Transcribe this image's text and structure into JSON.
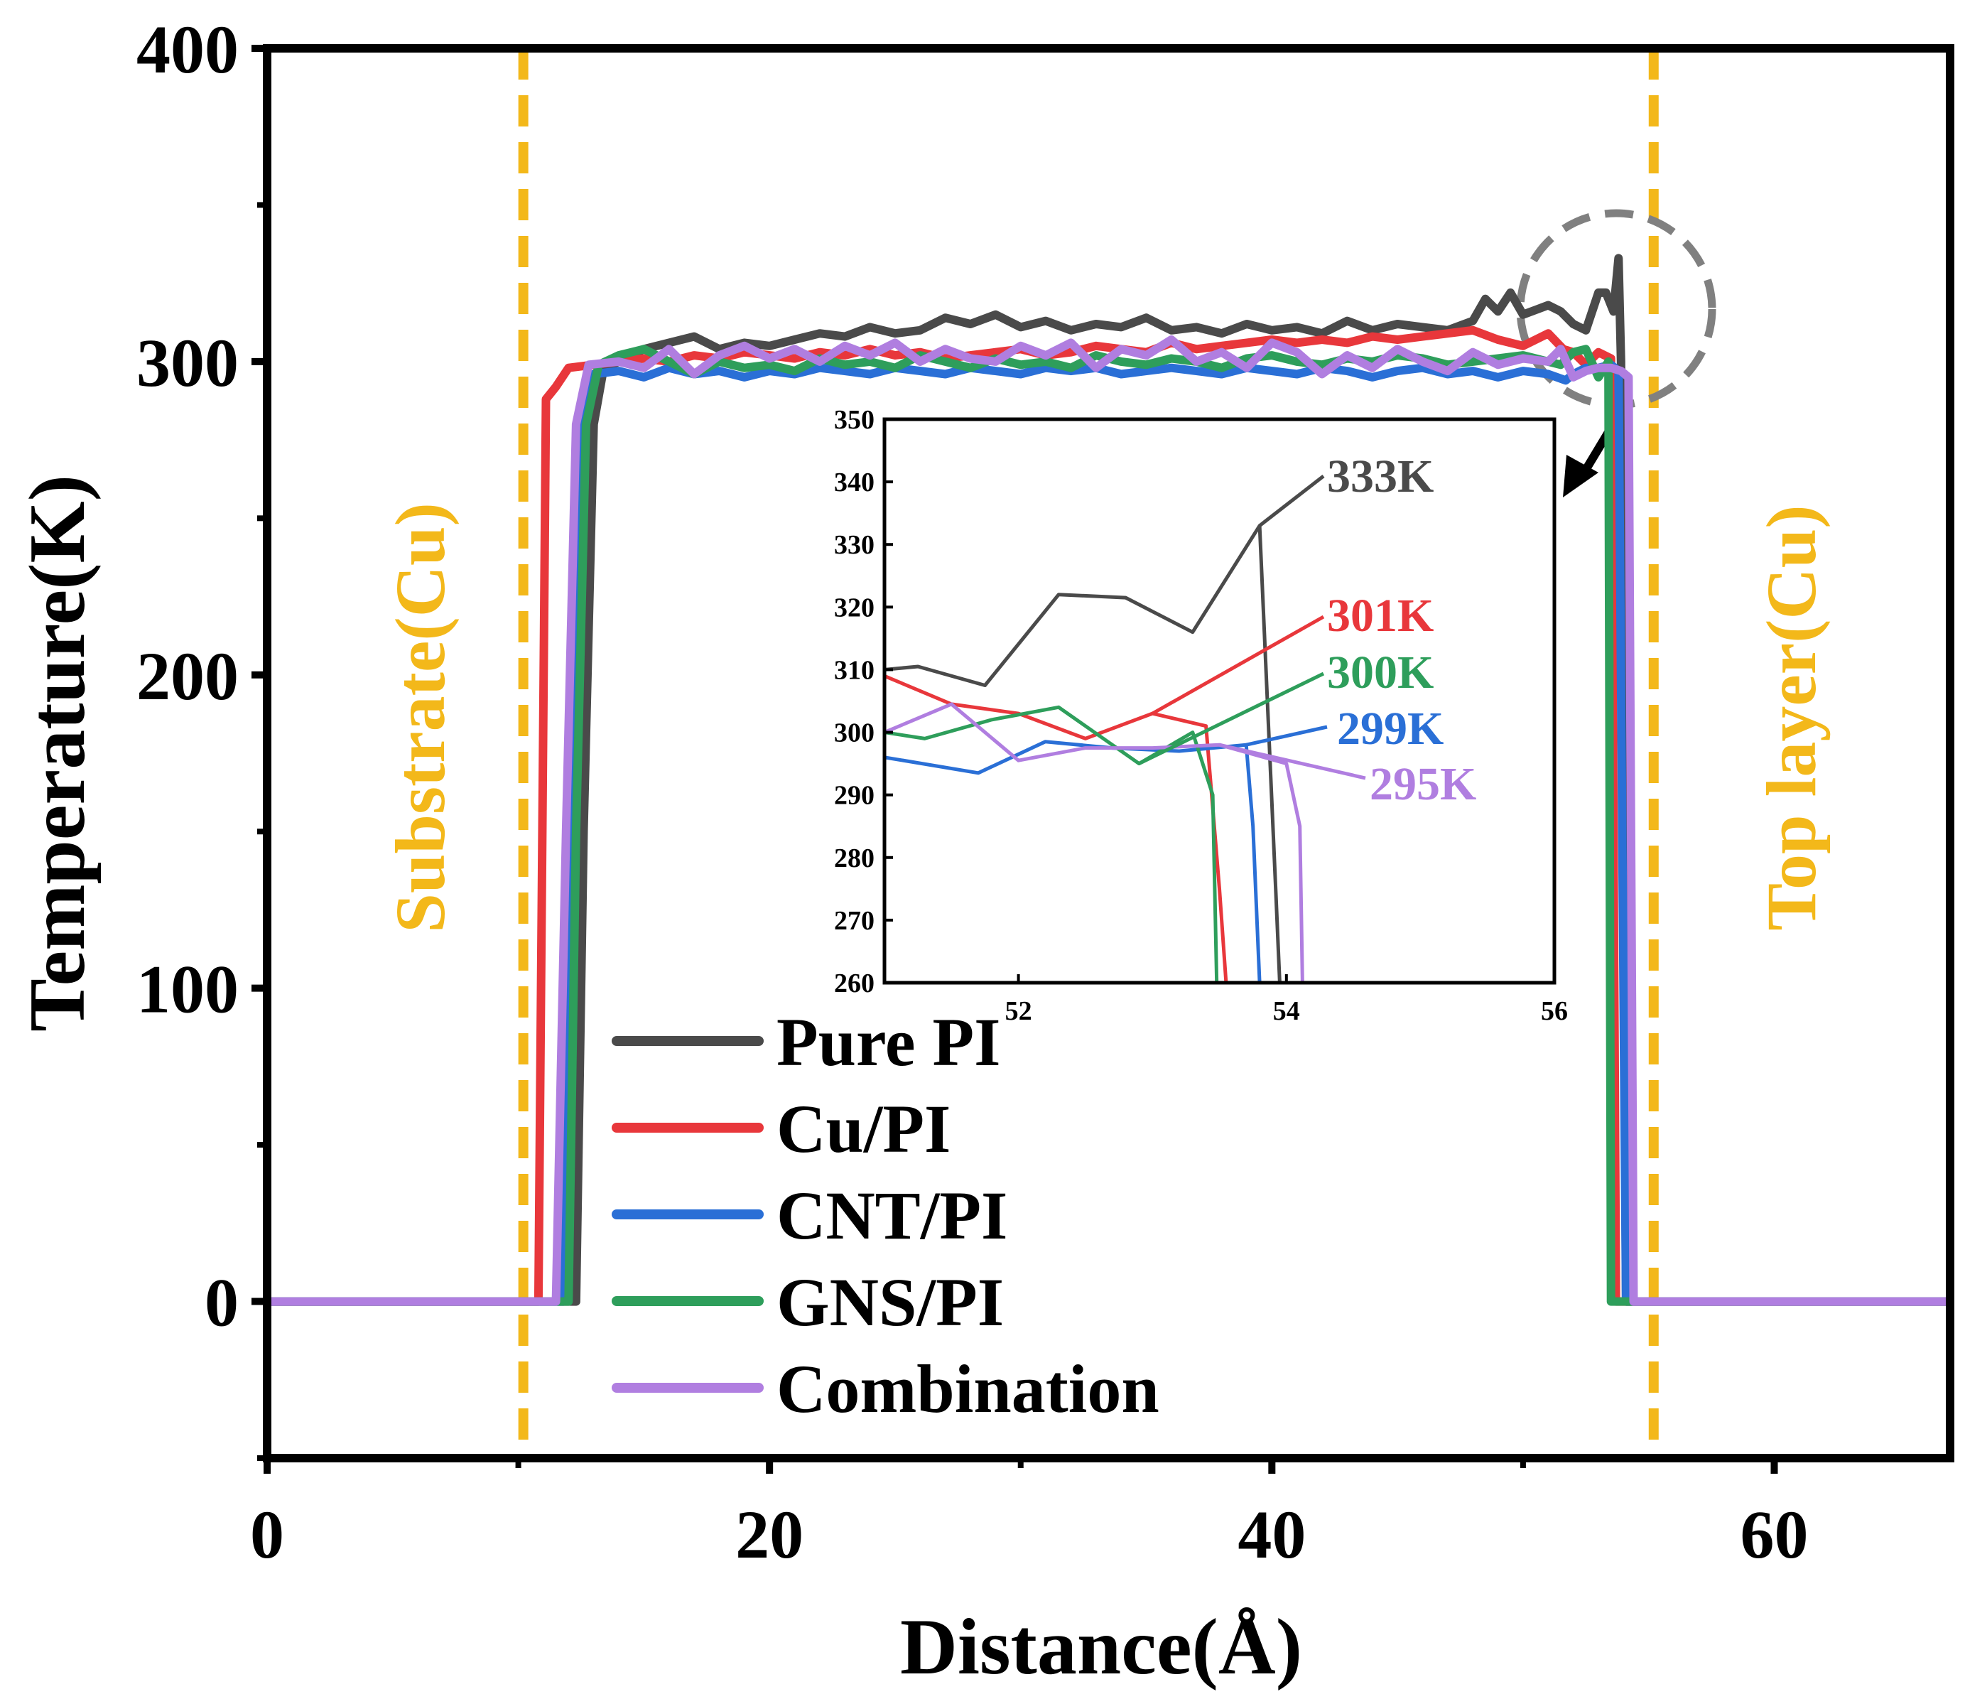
{
  "colors": {
    "pure_pi": "#4a4a4a",
    "cu_pi": "#e8373b",
    "cnt_pi": "#2a6fd6",
    "gns_pi": "#2e9e5b",
    "combination": "#b07ee0",
    "cu_layer": "#f3b81a",
    "circle": "#808080"
  },
  "chart_data": [
    {
      "type": "line",
      "xlabel": "Distance(Å)",
      "ylabel": "Temperature(K)",
      "xlim": [
        0,
        67
      ],
      "ylim": [
        -50,
        400
      ],
      "x_ticks": [
        0,
        20,
        40,
        60
      ],
      "x_tick_labels": [
        "0",
        "20",
        "40",
        "60"
      ],
      "y_ticks": [
        0,
        100,
        200,
        300,
        400
      ],
      "y_tick_labels": [
        "0",
        "100",
        "200",
        "300",
        "400"
      ],
      "legend_position": "bottom-center",
      "series": [
        {
          "name": "Pure PI",
          "color_key": "pure_pi",
          "x": [
            0,
            12.3,
            12.6,
            13.0,
            13.4,
            14,
            15,
            16,
            17,
            18,
            19,
            20,
            21,
            22,
            23,
            24,
            25,
            26,
            27,
            28,
            29,
            30,
            31,
            32,
            33,
            34,
            35,
            36,
            37,
            38,
            39,
            40,
            41,
            42,
            43,
            44,
            45,
            46,
            47,
            48,
            48.5,
            49,
            49.5,
            50,
            51,
            51.5,
            52,
            52.5,
            53,
            53.3,
            53.6,
            53.8,
            53.9,
            54.1,
            67
          ],
          "y": [
            0,
            0,
            150,
            280,
            298,
            300,
            304,
            306,
            308,
            304,
            306,
            305,
            307,
            309,
            308,
            311,
            309,
            310,
            314,
            312,
            315,
            311,
            313,
            310,
            312,
            311,
            314,
            310,
            311,
            309,
            312,
            310,
            311,
            309,
            313,
            310,
            312,
            311,
            310,
            313,
            320,
            316,
            322,
            315,
            318,
            316,
            312,
            310,
            322,
            322,
            316,
            333,
            300,
            0,
            0
          ]
        },
        {
          "name": "Cu/PI",
          "color_key": "cu_pi",
          "x": [
            0,
            10.8,
            11.1,
            11.5,
            12,
            13,
            14,
            15,
            16,
            17,
            18,
            19,
            20,
            21,
            22,
            23,
            24,
            25,
            26,
            27,
            28,
            29,
            30,
            31,
            32,
            33,
            34,
            35,
            36,
            37,
            38,
            39,
            40,
            41,
            42,
            43,
            44,
            45,
            46,
            47,
            48,
            49,
            50,
            51,
            51.6,
            52,
            52.5,
            53,
            53.5,
            53.7,
            54,
            67
          ],
          "y": [
            0,
            0,
            288,
            292,
            298,
            299,
            300,
            301,
            300,
            302,
            301,
            303,
            302,
            301,
            303,
            302,
            304,
            302,
            303,
            301,
            302,
            303,
            304,
            302,
            303,
            305,
            304,
            303,
            306,
            304,
            305,
            306,
            307,
            306,
            307,
            306,
            308,
            307,
            308,
            309,
            310,
            307,
            305,
            309,
            304,
            303,
            299,
            303,
            301,
            0,
            0,
            0
          ]
        },
        {
          "name": "CNT/PI",
          "color_key": "cnt_pi",
          "x": [
            0,
            11.8,
            12.1,
            12.5,
            13,
            14,
            15,
            16,
            17,
            18,
            19,
            20,
            21,
            22,
            23,
            24,
            25,
            26,
            27,
            28,
            29,
            30,
            31,
            32,
            33,
            34,
            35,
            36,
            37,
            38,
            39,
            40,
            41,
            42,
            43,
            44,
            45,
            46,
            47,
            48,
            49,
            50,
            51,
            51.7,
            52,
            52.5,
            53,
            53.5,
            53.8,
            54.1,
            67
          ],
          "y": [
            0,
            0,
            150,
            280,
            296,
            297,
            295,
            298,
            296,
            297,
            295,
            297,
            296,
            298,
            297,
            296,
            298,
            297,
            296,
            298,
            297,
            296,
            298,
            297,
            298,
            296,
            297,
            298,
            297,
            296,
            298,
            297,
            296,
            298,
            297,
            295,
            297,
            298,
            296,
            297,
            295,
            297,
            296,
            294,
            296,
            298,
            298,
            299,
            297,
            0,
            0
          ]
        },
        {
          "name": "GNS/PI",
          "color_key": "gns_pi",
          "x": [
            0,
            12.0,
            12.3,
            12.7,
            13.2,
            14,
            15,
            16,
            17,
            18,
            19,
            20,
            21,
            22,
            23,
            24,
            25,
            26,
            27,
            28,
            29,
            30,
            31,
            32,
            33,
            34,
            35,
            36,
            37,
            38,
            39,
            40,
            41,
            42,
            43,
            44,
            45,
            46,
            47,
            48,
            49,
            50,
            51,
            51.5,
            52,
            52.5,
            53,
            53.4,
            53.5,
            67
          ],
          "y": [
            0,
            0,
            150,
            280,
            299,
            302,
            304,
            300,
            296,
            300,
            298,
            299,
            297,
            301,
            299,
            300,
            298,
            302,
            300,
            298,
            301,
            299,
            300,
            298,
            302,
            300,
            299,
            301,
            300,
            298,
            301,
            302,
            300,
            299,
            301,
            300,
            302,
            301,
            299,
            300,
            301,
            302,
            300,
            299,
            303,
            304,
            295,
            300,
            0,
            0
          ]
        },
        {
          "name": "Combination",
          "color_key": "combination",
          "x": [
            0,
            11.5,
            11.9,
            12.3,
            12.8,
            14,
            15,
            16,
            17,
            18,
            19,
            20,
            21,
            22,
            23,
            24,
            25,
            26,
            27,
            28,
            29,
            30,
            31,
            32,
            33,
            34,
            35,
            36,
            37,
            38,
            39,
            40,
            41,
            42,
            43,
            44,
            45,
            46,
            47,
            48,
            49,
            50,
            51,
            51.5,
            52,
            52.5,
            53,
            53.5,
            53.9,
            54.2,
            54.4,
            67
          ],
          "y": [
            0,
            0,
            150,
            280,
            299,
            300,
            298,
            304,
            296,
            302,
            305,
            301,
            304,
            300,
            305,
            302,
            306,
            300,
            304,
            301,
            300,
            305,
            302,
            306,
            298,
            304,
            302,
            307,
            300,
            303,
            298,
            306,
            303,
            296,
            302,
            298,
            304,
            300,
            297,
            303,
            299,
            301,
            300,
            304,
            295,
            297,
            298,
            298,
            297,
            295,
            0,
            0
          ]
        }
      ]
    },
    {
      "type": "line",
      "xlim": [
        51,
        56
      ],
      "ylim": [
        260,
        350
      ],
      "x_ticks": [
        52,
        54,
        56
      ],
      "x_tick_labels": [
        "52",
        "54",
        "56"
      ],
      "y_ticks": [
        260,
        270,
        280,
        290,
        300,
        310,
        320,
        330,
        340,
        350
      ],
      "y_tick_labels": [
        "260",
        "270",
        "280",
        "290",
        "300",
        "310",
        "320",
        "330",
        "340",
        "350"
      ],
      "series": [
        {
          "name": "Pure PI",
          "color_key": "pure_pi",
          "peak_label": "333K",
          "x": [
            51.0,
            51.25,
            51.75,
            52.3,
            52.8,
            53.3,
            53.8,
            53.92,
            53.95
          ],
          "y": [
            310,
            310.5,
            307.5,
            322,
            321.5,
            316,
            333,
            275,
            260
          ]
        },
        {
          "name": "Cu/PI",
          "color_key": "cu_pi",
          "peak_label": "301K",
          "x": [
            51.0,
            51.5,
            52.0,
            52.5,
            53.0,
            53.4,
            53.5,
            53.55
          ],
          "y": [
            309,
            304.5,
            303,
            299,
            303,
            301,
            275,
            260
          ]
        },
        {
          "name": "CNT/PI",
          "color_key": "cnt_pi",
          "peak_label": "299K",
          "x": [
            51.0,
            51.7,
            52.2,
            52.7,
            53.2,
            53.7,
            53.75,
            53.8
          ],
          "y": [
            296,
            293.5,
            298.5,
            297.5,
            297,
            298,
            285,
            260
          ]
        },
        {
          "name": "GNS/PI",
          "color_key": "gns_pi",
          "peak_label": "300K",
          "x": [
            51.0,
            51.3,
            51.8,
            52.3,
            52.9,
            53.3,
            53.45,
            53.48
          ],
          "y": [
            300,
            299,
            302,
            304,
            295,
            300,
            290,
            260
          ]
        },
        {
          "name": "Combination",
          "color_key": "combination",
          "peak_label": "295K",
          "x": [
            51.0,
            51.5,
            52.0,
            52.5,
            53.0,
            53.5,
            54.0,
            54.1,
            54.12
          ],
          "y": [
            300,
            304.5,
            295.5,
            297.5,
            297.5,
            298,
            295,
            285,
            260
          ]
        }
      ]
    }
  ],
  "annotations": {
    "substrate_label": "Substrate(Cu)",
    "top_layer_label": "Top layer(Cu)"
  }
}
